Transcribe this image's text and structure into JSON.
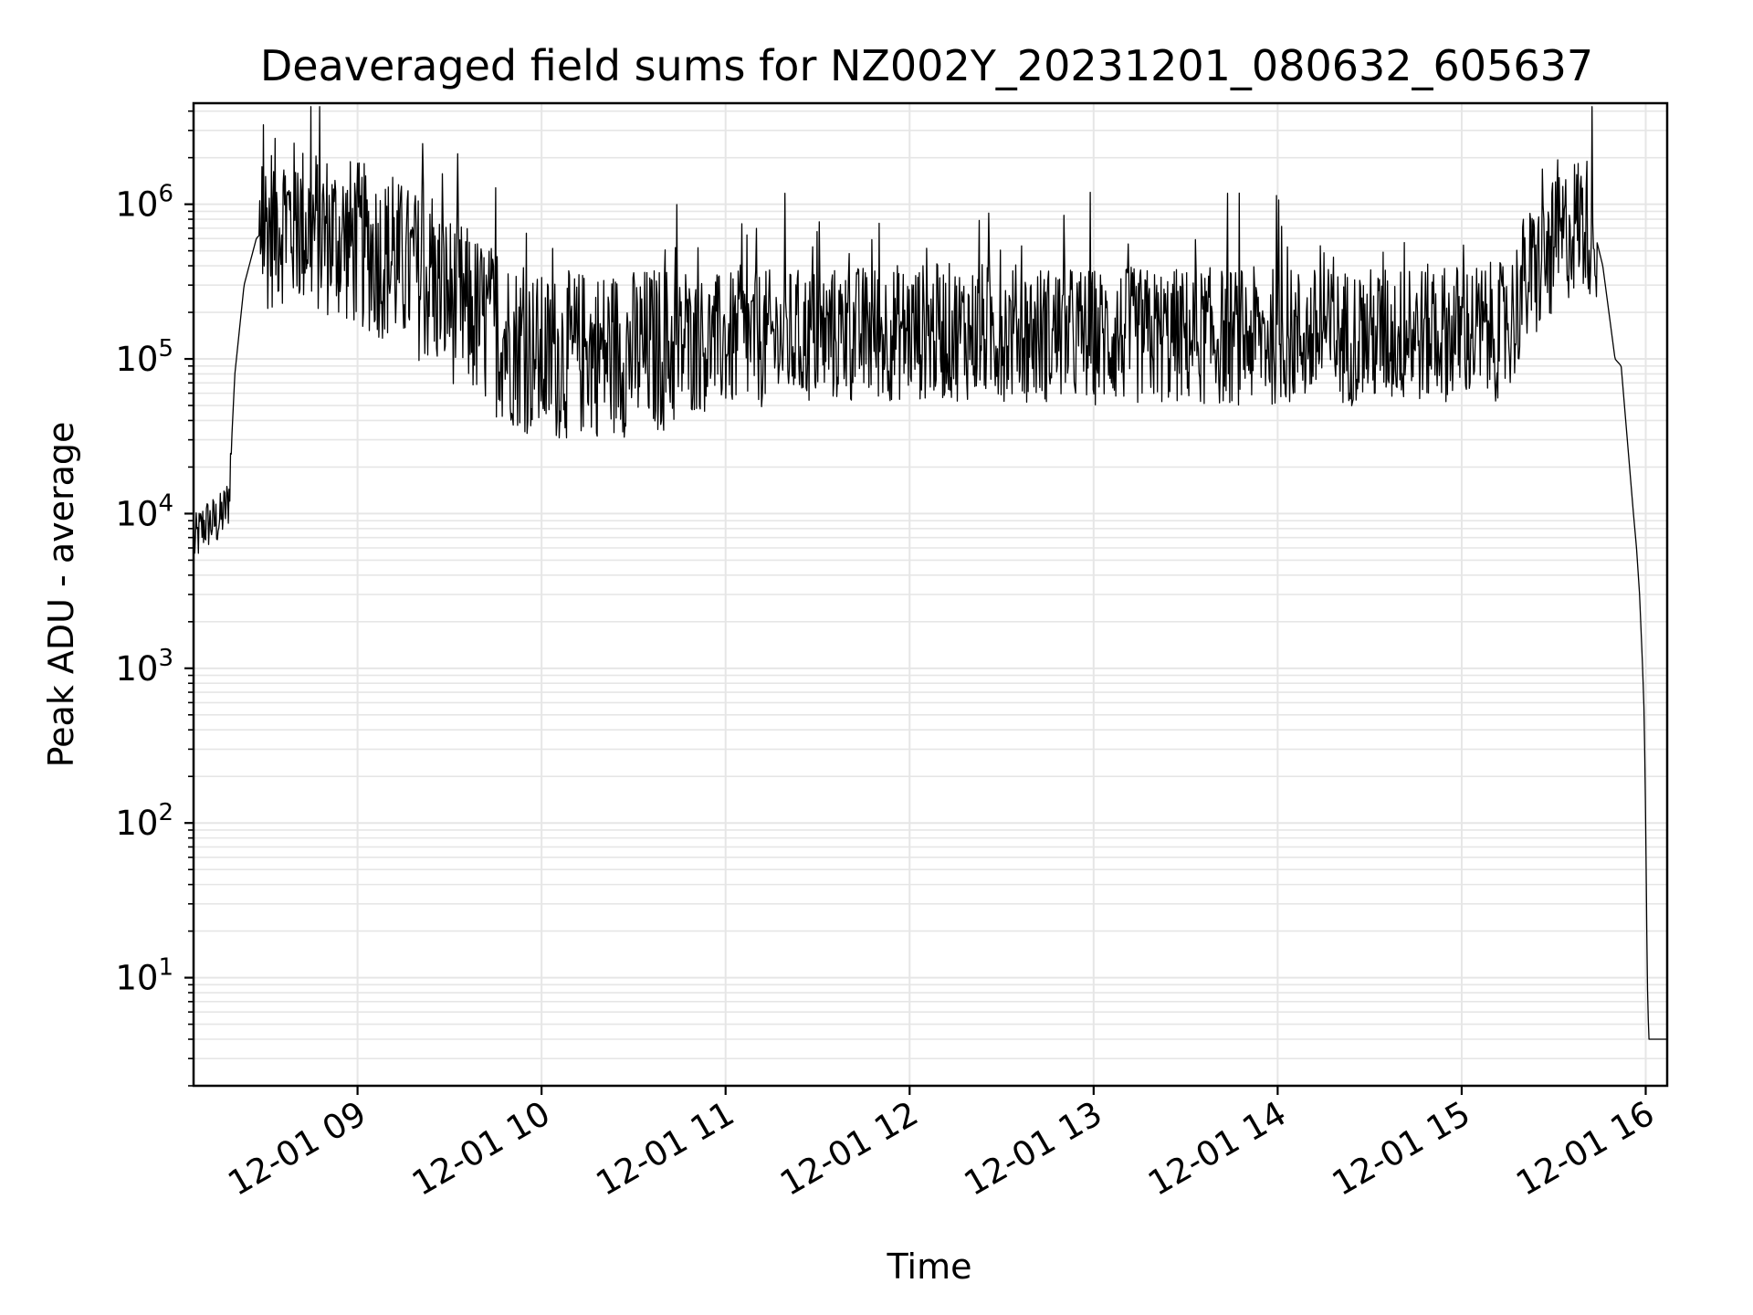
{
  "chart_data": {
    "type": "line",
    "title": "Deaveraged field sums for NZ002Y_20231201_080632_605637",
    "xlabel": "Time",
    "ylabel": "Peak ADU - average",
    "x_range": [
      "2023-12-01 08:06:32",
      "2023-12-01 16:07:00"
    ],
    "y_scale": "log",
    "ylim": [
      2,
      4500000.0
    ],
    "grid": true,
    "legend": "none",
    "x_ticks": [
      {
        "value": "2023-12-01 09:00",
        "label": "12-01 09"
      },
      {
        "value": "2023-12-01 10:00",
        "label": "12-01 10"
      },
      {
        "value": "2023-12-01 11:00",
        "label": "12-01 11"
      },
      {
        "value": "2023-12-01 12:00",
        "label": "12-01 12"
      },
      {
        "value": "2023-12-01 13:00",
        "label": "12-01 13"
      },
      {
        "value": "2023-12-01 14:00",
        "label": "12-01 14"
      },
      {
        "value": "2023-12-01 15:00",
        "label": "12-01 15"
      },
      {
        "value": "2023-12-01 16:00",
        "label": "12-01 16"
      }
    ],
    "y_ticks": [
      {
        "value": 10,
        "base": "10",
        "exp": "1"
      },
      {
        "value": 100,
        "base": "10",
        "exp": "2"
      },
      {
        "value": 1000,
        "base": "10",
        "exp": "3"
      },
      {
        "value": 10000,
        "base": "10",
        "exp": "4"
      },
      {
        "value": 100000,
        "base": "10",
        "exp": "5"
      },
      {
        "value": 1000000,
        "base": "10",
        "exp": "6"
      }
    ],
    "line_color": "#000000",
    "grid_color": "#e6e6e6",
    "series": [
      {
        "points": [
          [
            "2023-12-01 08:06",
            6000
          ],
          [
            "2023-12-01 08:10",
            8500
          ],
          [
            "2023-12-01 08:15",
            9000
          ],
          [
            "2023-12-01 08:18",
            12000
          ],
          [
            "2023-12-01 08:20",
            80000
          ],
          [
            "2023-12-01 08:23",
            300000
          ],
          [
            "2023-12-01 08:27",
            600000
          ],
          [
            "2023-12-01 08:30",
            700000
          ],
          [
            "2023-12-01 08:35",
            800000
          ],
          [
            "2023-12-01 08:45",
            700000
          ],
          [
            "2023-12-01 09:00",
            550000
          ],
          [
            "2023-12-01 09:15",
            400000
          ],
          [
            "2023-12-01 09:30",
            250000
          ],
          [
            "2023-12-01 09:45",
            150000
          ],
          [
            "2023-12-01 10:00",
            100000
          ],
          [
            "2023-12-01 10:15",
            110000
          ],
          [
            "2023-12-01 10:30",
            110000
          ],
          [
            "2023-12-01 10:45",
            120000
          ],
          [
            "2023-12-01 11:00",
            130000
          ],
          [
            "2023-12-01 11:30",
            140000
          ],
          [
            "2023-12-01 12:00",
            150000
          ],
          [
            "2023-12-01 12:30",
            150000
          ],
          [
            "2023-12-01 13:00",
            140000
          ],
          [
            "2023-12-01 13:30",
            140000
          ],
          [
            "2023-12-01 14:00",
            140000
          ],
          [
            "2023-12-01 14:30",
            140000
          ],
          [
            "2023-12-01 15:00",
            150000
          ],
          [
            "2023-12-01 15:15",
            150000
          ],
          [
            "2023-12-01 15:20",
            300000
          ],
          [
            "2023-12-01 15:30",
            500000
          ],
          [
            "2023-12-01 15:38",
            800000
          ],
          [
            "2023-12-01 15:43",
            700000
          ],
          [
            "2023-12-01 15:46",
            400000
          ],
          [
            "2023-12-01 15:48",
            200000
          ],
          [
            "2023-12-01 15:50",
            100000
          ],
          [
            "2023-12-01 15:52",
            90000
          ],
          [
            "2023-12-01 15:54",
            30000
          ],
          [
            "2023-12-01 15:56",
            10000
          ],
          [
            "2023-12-01 15:57",
            6000
          ],
          [
            "2023-12-01 15:58",
            3000
          ],
          [
            "2023-12-01 15:59",
            1000
          ],
          [
            "2023-12-01 15:59:30",
            500
          ],
          [
            "2023-12-01 16:00",
            100
          ],
          [
            "2023-12-01 16:00:30",
            10
          ],
          [
            "2023-12-01 16:01",
            4
          ],
          [
            "2023-12-01 16:07",
            4
          ]
        ]
      }
    ]
  }
}
